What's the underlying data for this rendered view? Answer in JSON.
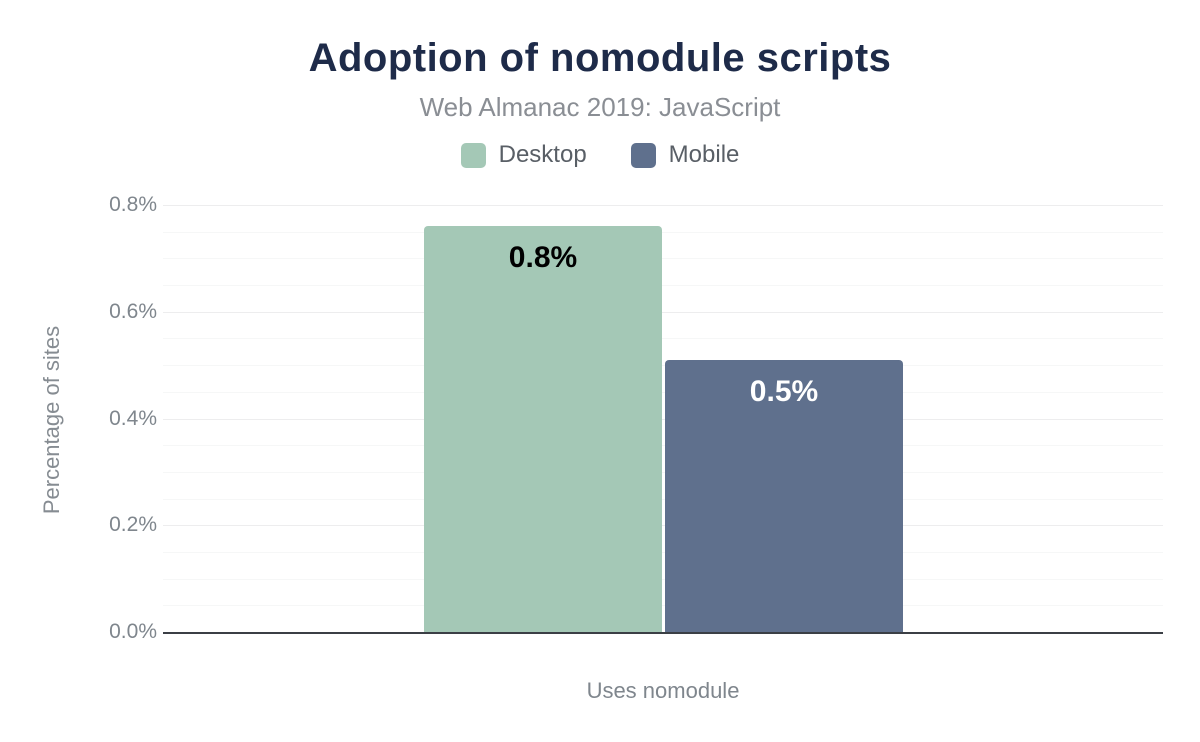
{
  "chart_data": {
    "type": "bar",
    "title": "Adoption of nomodule scripts",
    "subtitle": "Web Almanac 2019: JavaScript",
    "categories": [
      "Uses nomodule"
    ],
    "series": [
      {
        "name": "Desktop",
        "values": [
          0.76
        ],
        "display_labels": [
          "0.8%"
        ],
        "color": "#a4c8b6",
        "label_color": "#000000"
      },
      {
        "name": "Mobile",
        "values": [
          0.51
        ],
        "display_labels": [
          "0.5%"
        ],
        "color": "#5f708d",
        "label_color": "#ffffff"
      }
    ],
    "xlabel": "Uses nomodule",
    "ylabel": "Percentage of sites",
    "ylim": [
      0,
      0.8
    ],
    "y_major_step": 0.2,
    "y_minor_step": 0.05,
    "y_ticks": [
      {
        "value": 0.0,
        "label": "0.0%"
      },
      {
        "value": 0.2,
        "label": "0.2%"
      },
      {
        "value": 0.4,
        "label": "0.4%"
      },
      {
        "value": 0.6,
        "label": "0.6%"
      },
      {
        "value": 0.8,
        "label": "0.8%"
      }
    ],
    "grid": true,
    "legend_position": "top"
  },
  "colors": {
    "title": "#1e2b49",
    "subtitle": "#8a8e94",
    "axis_text": "#7f868d",
    "baseline": "#3b3f45",
    "gridline_major": "#ededee",
    "gridline_minor": "#f6f7f7",
    "desktop": "#a4c8b6",
    "mobile": "#5f708d"
  }
}
